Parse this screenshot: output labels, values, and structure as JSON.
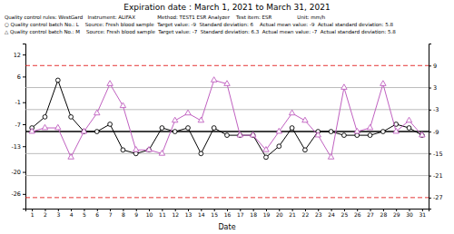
{
  "chart_data": {
    "type": "line",
    "title": "Expiration date : March 1, 2021 to March 31, 2021",
    "annotations": [
      "Quality control rules: WestGard   Instrument: ALIFAX              Method: TEST1 ESR Analyzer    Test item: ESR                Unit: mm/h",
      "○ Quality control batch No.: L    Source: Fresh blood sample  Target value: -9  Standard deviation: 6    Actual mean value: -9  Actual standard deviation: 5.8",
      "△ Quality control batch No.: M    Source: Fresh blood sample  Target value: -7  Standard deviation: 6.3  Actual mean value: -7  Actual standard deviation: 5.8"
    ],
    "x_label": "Date",
    "x": [
      1,
      2,
      3,
      4,
      5,
      6,
      7,
      8,
      9,
      10,
      11,
      12,
      13,
      14,
      15,
      16,
      17,
      18,
      19,
      20,
      21,
      22,
      23,
      24,
      25,
      26,
      27,
      28,
      29,
      30,
      31
    ],
    "xlim": [
      0.5,
      31.5
    ],
    "xticks": [
      1,
      2,
      3,
      4,
      5,
      6,
      7,
      8,
      9,
      10,
      11,
      12,
      13,
      14,
      15,
      16,
      17,
      18,
      19,
      20,
      21,
      22,
      23,
      24,
      25,
      26,
      27,
      28,
      29,
      30,
      31
    ],
    "series": [
      {
        "color": "#000000",
        "marker": "circle",
        "line_style": "solid",
        "values": [
          -8,
          -5,
          5,
          -5,
          -9,
          -9,
          -7,
          -14,
          -15,
          -14,
          -8,
          -9,
          -8,
          -15,
          -8,
          -10,
          -10,
          -10,
          -16,
          -13,
          -8,
          -14,
          -9,
          -9,
          -10,
          -10,
          -10,
          -9,
          -7,
          -8,
          -10
        ]
      },
      {
        "color": "#c060c0",
        "marker": "triangle",
        "line_style": "solid",
        "values": [
          -9,
          -8,
          -8,
          -16,
          -9,
          -4,
          4,
          -2,
          -14,
          -14,
          -15,
          -6,
          -4,
          -6,
          5,
          4,
          -10,
          -10,
          -14,
          -9,
          -4,
          -6,
          -10,
          -16,
          3,
          -9,
          -8,
          4,
          -9,
          -6,
          -10
        ]
      }
    ],
    "ylim": [
      -30,
      15
    ],
    "yticks": [
      12,
      6,
      -1,
      -7,
      -13,
      -20,
      -26
    ],
    "y2lim": [
      -30,
      15
    ],
    "y2ticks": [
      9,
      3,
      -3,
      -9,
      -15,
      -21,
      -27
    ],
    "hlines": [
      {
        "value": 9,
        "color": "#dd0000",
        "line_style": "dashed"
      },
      {
        "value": -27,
        "color": "#dd0000",
        "line_style": "dashed"
      },
      {
        "value": 3,
        "color": "#aaaaaa",
        "line_style": "solid"
      },
      {
        "value": -3,
        "color": "#aaaaaa",
        "line_style": "solid"
      },
      {
        "value": -15,
        "color": "#aaaaaa",
        "line_style": "solid"
      },
      {
        "value": -21,
        "color": "#aaaaaa",
        "line_style": "solid"
      },
      {
        "value": -9,
        "color": "#000000",
        "line_style": "solid"
      }
    ],
    "grid": false
  }
}
